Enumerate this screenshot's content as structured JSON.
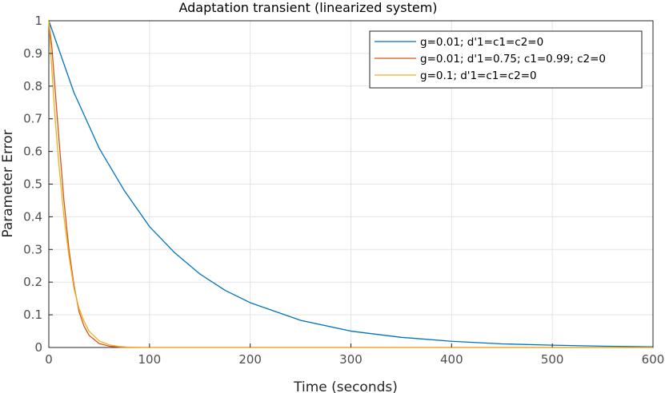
{
  "chart_data": {
    "type": "line",
    "title": "Adaptation transient (linearized system)",
    "xlabel": "Time (seconds)",
    "ylabel": "Parameter Error",
    "xlim": [
      0,
      600
    ],
    "ylim": [
      0,
      1
    ],
    "xticks": [
      0,
      100,
      200,
      300,
      400,
      500,
      600
    ],
    "yticks": [
      0,
      0.1,
      0.2,
      0.3,
      0.4,
      0.5,
      0.6,
      0.7,
      0.8,
      0.9,
      1
    ],
    "grid": true,
    "legend_position": "top-right",
    "series": [
      {
        "name": "g=0.01; d'1=c1=c2=0",
        "color": "#0072BD",
        "x": [
          0,
          25,
          50,
          75,
          100,
          125,
          150,
          175,
          200,
          250,
          300,
          350,
          400,
          450,
          500,
          550,
          600
        ],
        "y": [
          1.0,
          0.78,
          0.61,
          0.48,
          0.37,
          0.29,
          0.225,
          0.175,
          0.137,
          0.083,
          0.05,
          0.031,
          0.019,
          0.011,
          0.007,
          0.004,
          0.002
        ]
      },
      {
        "name": "g=0.01; d'1=0.75; c1=0.99; c2=0",
        "color": "#D95319",
        "x": [
          0,
          3,
          6,
          10,
          15,
          20,
          25,
          30,
          35,
          40,
          50,
          60,
          70,
          80,
          100,
          600
        ],
        "y": [
          1.0,
          0.92,
          0.8,
          0.64,
          0.45,
          0.3,
          0.19,
          0.11,
          0.065,
          0.037,
          0.012,
          0.004,
          0.001,
          0.0,
          0.0,
          0.0
        ]
      },
      {
        "name": "g=0.1; d'1=c1=c2=0",
        "color": "#EDB120",
        "x": [
          0,
          3,
          6,
          10,
          15,
          20,
          25,
          30,
          35,
          40,
          50,
          60,
          70,
          80,
          100,
          600
        ],
        "y": [
          1.0,
          0.85,
          0.71,
          0.56,
          0.4,
          0.28,
          0.18,
          0.12,
          0.08,
          0.05,
          0.02,
          0.008,
          0.003,
          0.001,
          0.0,
          0.0
        ]
      }
    ]
  }
}
